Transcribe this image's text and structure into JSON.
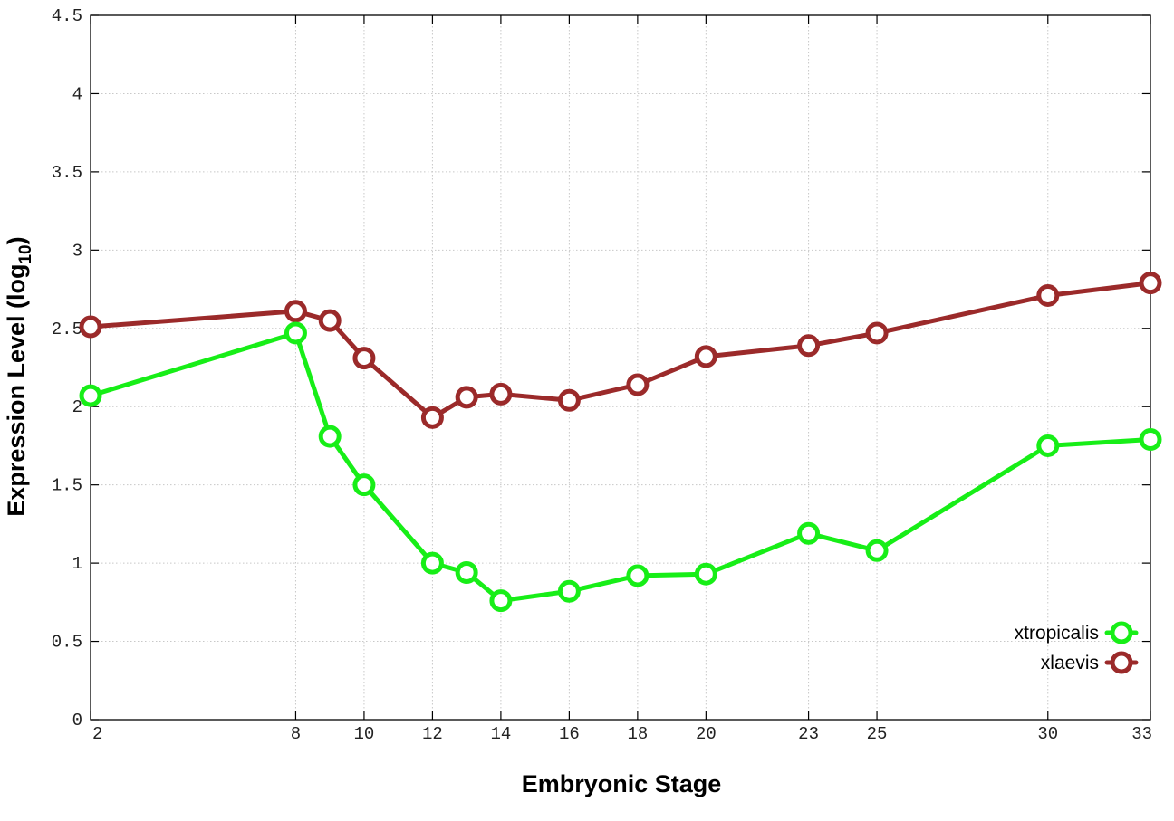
{
  "chart_data": {
    "type": "line",
    "xlabel": "Embryonic Stage",
    "ylabel_main": "Expression Level (log",
    "ylabel_sub": "10",
    "ylabel_close": ")",
    "x_ticks": [
      2,
      8,
      10,
      12,
      14,
      16,
      18,
      20,
      23,
      25,
      30,
      33
    ],
    "y_ticks": [
      "0",
      "0.5",
      "1",
      "1.5",
      "2",
      "2.5",
      "3",
      "3.5",
      "4",
      "4.5"
    ],
    "xlim": [
      2,
      33
    ],
    "ylim": [
      0,
      4.5
    ],
    "grid": true,
    "legend_position": "bottom-right",
    "series": [
      {
        "name": "xtropicalis",
        "color": "#17ee17",
        "x": [
          2,
          8,
          9,
          10,
          12,
          13,
          14,
          16,
          18,
          20,
          23,
          25,
          30,
          33
        ],
        "y": [
          2.07,
          2.47,
          1.81,
          1.5,
          1.0,
          0.94,
          0.76,
          0.82,
          0.92,
          0.93,
          1.19,
          1.08,
          1.75,
          1.79
        ]
      },
      {
        "name": "xlaevis",
        "color": "#9b2a2a",
        "x": [
          2,
          8,
          9,
          10,
          12,
          13,
          14,
          16,
          18,
          20,
          23,
          25,
          30,
          33
        ],
        "y": [
          2.51,
          2.61,
          2.55,
          2.31,
          1.93,
          2.06,
          2.08,
          2.04,
          2.14,
          2.32,
          2.39,
          2.47,
          2.71,
          2.79
        ]
      }
    ]
  }
}
